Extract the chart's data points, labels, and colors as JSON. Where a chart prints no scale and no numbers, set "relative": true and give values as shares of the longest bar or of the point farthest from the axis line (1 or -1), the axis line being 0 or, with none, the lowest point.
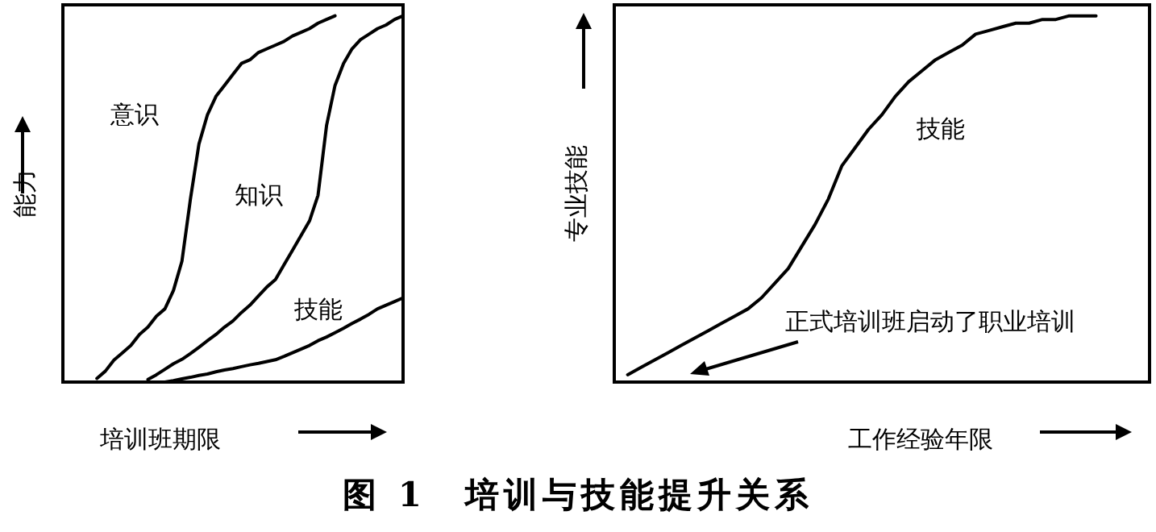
{
  "chart_data": [
    {
      "type": "line",
      "title": "图 1　培训与技能提升关系",
      "xlabel": "培训班期限",
      "ylabel": "能力",
      "relative": true,
      "categories": [
        null,
        null,
        null,
        null,
        null,
        null,
        null,
        null,
        null,
        null,
        null,
        null,
        null,
        null,
        null,
        null,
        null,
        null,
        null,
        null,
        null,
        null,
        null,
        null,
        null,
        null,
        null,
        null,
        null,
        null,
        null,
        null,
        null,
        null,
        null,
        null,
        null,
        null,
        null,
        null,
        null
      ],
      "series": [
        {
          "name": "意识",
          "color": "#000000",
          "values": [
            null,
            null,
            null,
            null,
            0.01,
            0.03,
            0.06,
            0.08,
            0.1,
            0.13,
            0.15,
            0.18,
            0.2,
            0.25,
            0.33,
            0.5,
            0.65,
            0.73,
            0.78,
            0.81,
            0.84,
            0.87,
            0.88,
            0.9,
            0.91,
            0.92,
            0.93,
            0.945,
            0.955,
            0.965,
            0.98,
            0.99,
            1.0,
            null,
            null,
            null,
            null,
            null,
            null,
            null,
            null
          ]
        },
        {
          "name": "知识",
          "color": "#000000",
          "values": [
            null,
            null,
            null,
            null,
            null,
            null,
            null,
            null,
            null,
            null,
            0.007,
            0.02,
            0.035,
            0.05,
            0.062,
            0.078,
            0.095,
            0.113,
            0.13,
            0.15,
            0.167,
            0.19,
            0.21,
            0.235,
            0.26,
            0.28,
            0.32,
            0.36,
            0.4,
            0.44,
            0.51,
            0.7,
            0.81,
            0.87,
            0.91,
            0.935,
            0.95,
            0.965,
            0.975,
            0.99,
            1.0
          ]
        },
        {
          "name": "技能",
          "color": "#000000",
          "values": [
            null,
            null,
            null,
            null,
            null,
            null,
            null,
            null,
            null,
            null,
            null,
            null,
            0,
            0.004,
            0.009,
            0.013,
            0.018,
            0.022,
            0.028,
            0.033,
            0.037,
            0.042,
            0.047,
            0.051,
            0.056,
            0.061,
            0.07,
            0.08,
            0.09,
            0.1,
            0.113,
            0.123,
            0.135,
            0.147,
            0.16,
            0.172,
            0.185,
            0.2,
            0.21,
            0.22,
            0.23
          ]
        }
      ]
    },
    {
      "type": "line",
      "xlabel": "工作经验年限",
      "ylabel": "专业技能",
      "relative": true,
      "annotations": [
        "正式培训班启动了职业培训"
      ],
      "categories": [
        null,
        null,
        null,
        null,
        null,
        null,
        null,
        null,
        null,
        null,
        null,
        null,
        null,
        null,
        null,
        null,
        null,
        null,
        null,
        null,
        null,
        null,
        null,
        null,
        null,
        null,
        null,
        null,
        null,
        null,
        null,
        null,
        null,
        null,
        null,
        null,
        null,
        null,
        null,
        null,
        null
      ],
      "series": [
        {
          "name": "技能",
          "color": "#000000",
          "values": [
            null,
            0.02,
            0.04,
            0.06,
            0.08,
            0.1,
            0.12,
            0.14,
            0.16,
            0.18,
            0.2,
            0.23,
            0.27,
            0.31,
            0.37,
            0.43,
            0.5,
            0.59,
            0.64,
            0.69,
            0.73,
            0.78,
            0.82,
            0.85,
            0.88,
            0.9,
            0.92,
            0.95,
            0.96,
            0.97,
            0.98,
            0.98,
            0.99,
            0.99,
            1.0,
            1.0,
            1.0,
            null,
            null,
            null,
            null
          ]
        }
      ]
    }
  ]
}
